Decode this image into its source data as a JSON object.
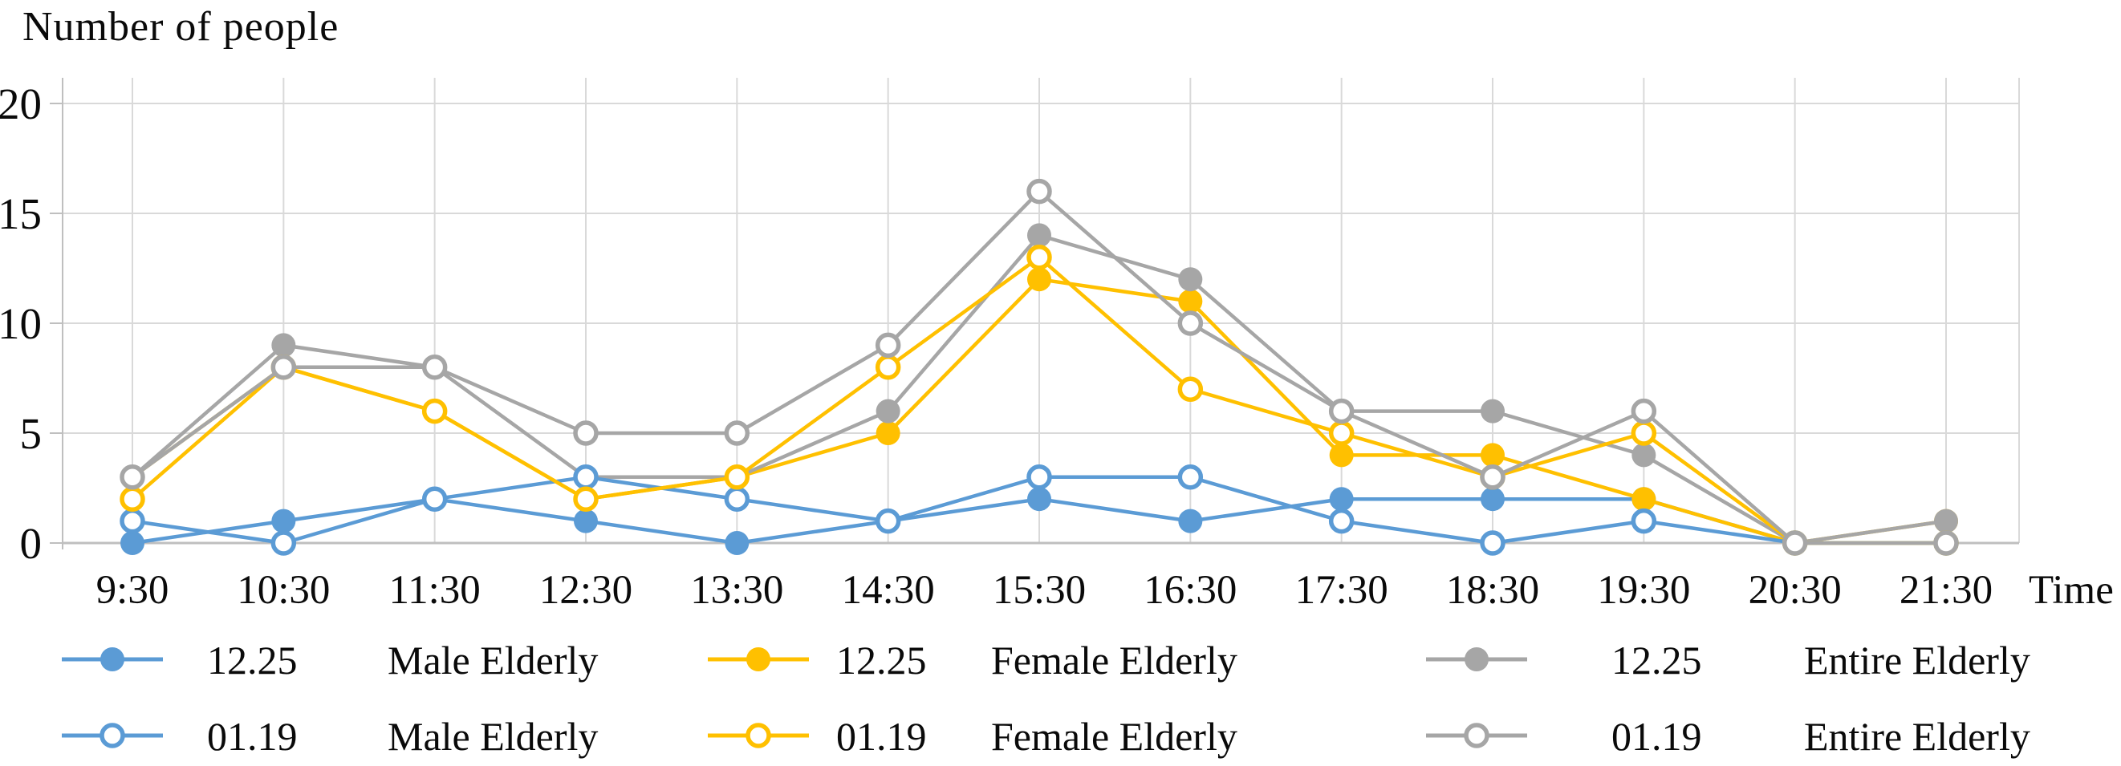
{
  "chart": {
    "title": "Number of people",
    "x_axis_label": "Time"
  },
  "chart_data": {
    "type": "line",
    "title": "Number of people",
    "xlabel": "Time",
    "ylabel": "Number of people",
    "categories": [
      "9:30",
      "10:30",
      "11:30",
      "12:30",
      "13:30",
      "14:30",
      "15:30",
      "16:30",
      "17:30",
      "18:30",
      "19:30",
      "20:30",
      "21:30"
    ],
    "y_ticks": [
      0,
      5,
      10,
      15,
      20
    ],
    "ylim": [
      0,
      20
    ],
    "grid": true,
    "grid_color": "#d9d9d9",
    "axis_color": "#bfbfbf",
    "legend_position": "bottom",
    "series": [
      {
        "date": "12.25",
        "group": "Male Elderly",
        "name": "12.25 Male Elderly",
        "color": "#5B9BD5",
        "marker": "filled",
        "values": [
          0,
          1,
          2,
          1,
          0,
          1,
          2,
          1,
          2,
          2,
          2,
          0,
          0
        ]
      },
      {
        "date": "12.25",
        "group": "Female Elderly",
        "name": "12.25 Female Elderly",
        "color": "#FFC000",
        "marker": "filled",
        "values": [
          3,
          8,
          6,
          2,
          3,
          5,
          12,
          11,
          4,
          4,
          2,
          0,
          1
        ]
      },
      {
        "date": "12.25",
        "group": "Entire Elderly",
        "name": "12.25 Entire Elderly",
        "color": "#A6A6A6",
        "marker": "filled",
        "values": [
          3,
          9,
          8,
          3,
          3,
          6,
          14,
          12,
          6,
          6,
          4,
          0,
          1
        ]
      },
      {
        "date": "01.19",
        "group": "Male Elderly",
        "name": "01.19 Male Elderly",
        "color": "#5B9BD5",
        "marker": "open",
        "values": [
          1,
          0,
          2,
          3,
          2,
          1,
          3,
          3,
          1,
          0,
          1,
          0,
          0
        ]
      },
      {
        "date": "01.19",
        "group": "Female Elderly",
        "name": "01.19 Female Elderly",
        "color": "#FFC000",
        "marker": "open",
        "values": [
          2,
          8,
          6,
          2,
          3,
          8,
          13,
          7,
          5,
          3,
          5,
          0,
          0
        ]
      },
      {
        "date": "01.19",
        "group": "Entire Elderly",
        "name": "01.19 Entire Elderly",
        "color": "#A6A6A6",
        "marker": "open",
        "values": [
          3,
          8,
          8,
          5,
          5,
          9,
          16,
          10,
          6,
          3,
          6,
          0,
          0
        ]
      }
    ]
  }
}
